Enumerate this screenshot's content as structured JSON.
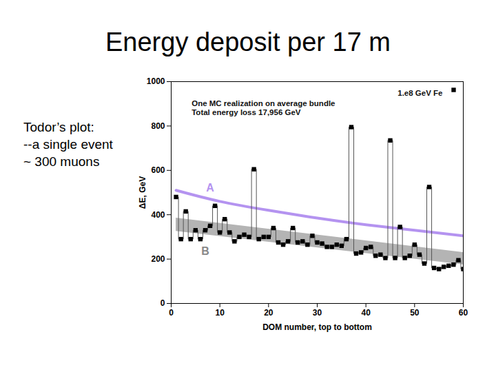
{
  "title": "Energy deposit per 17 m",
  "side_text": [
    "Todor’s plot:",
    "--a single event",
    "~ 300 muons"
  ],
  "chart_data": {
    "type": "line",
    "x_label": "DOM number, top to bottom",
    "y_label": "ΔE, GeV",
    "annotations": [
      "One MC realization on average bundle",
      "Total energy loss 17,956 GeV"
    ],
    "x": [
      1,
      2,
      3,
      4,
      5,
      6,
      7,
      8,
      9,
      10,
      11,
      12,
      13,
      14,
      15,
      16,
      17,
      18,
      19,
      20,
      21,
      22,
      23,
      24,
      25,
      26,
      27,
      28,
      29,
      30,
      31,
      32,
      33,
      34,
      35,
      36,
      37,
      38,
      39,
      40,
      41,
      42,
      43,
      44,
      45,
      46,
      47,
      48,
      49,
      50,
      51,
      52,
      53,
      54,
      55,
      56,
      57,
      58,
      59,
      60
    ],
    "series": [
      {
        "name": "1.e8 GeV Fe",
        "color": "#000000",
        "marker": "square",
        "line_style": "step",
        "values": [
          480,
          290,
          415,
          290,
          330,
          290,
          330,
          350,
          440,
          320,
          380,
          320,
          280,
          300,
          310,
          300,
          605,
          290,
          300,
          300,
          340,
          275,
          265,
          280,
          340,
          275,
          280,
          265,
          305,
          275,
          270,
          255,
          255,
          265,
          260,
          290,
          795,
          225,
          230,
          250,
          255,
          215,
          220,
          205,
          735,
          205,
          345,
          205,
          215,
          265,
          220,
          180,
          525,
          160,
          155,
          165,
          170,
          175,
          195,
          155
        ]
      }
    ],
    "band": {
      "name": "B",
      "color": "#b4b4b4",
      "x": [
        1,
        60
      ],
      "lower": [
        325,
        175
      ],
      "upper": [
        385,
        230
      ]
    },
    "curve": {
      "name": "A",
      "color": "#b493f0",
      "x": [
        1,
        10,
        20,
        30,
        40,
        50,
        60
      ],
      "values": [
        510,
        460,
        420,
        385,
        355,
        330,
        305
      ]
    },
    "xlim": [
      0,
      60
    ],
    "xticks": [
      0,
      10,
      20,
      30,
      40,
      50,
      60
    ],
    "ylim": [
      0,
      1000
    ],
    "yticks": [
      0,
      200,
      400,
      600,
      800,
      1000
    ],
    "legend": "top-right"
  }
}
